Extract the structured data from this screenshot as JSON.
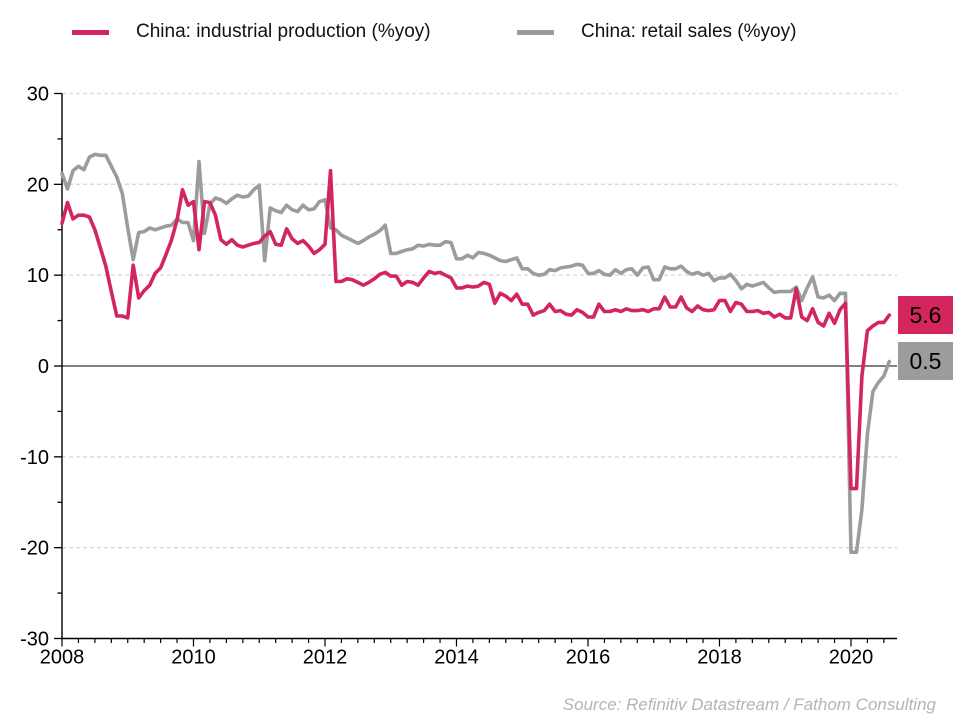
{
  "source": "Source: Refinitiv Datastream / Fathom Consulting",
  "chart_data": {
    "type": "line",
    "title": "",
    "xlabel": "",
    "ylabel": "",
    "x_start_year": 2008,
    "points_per_year": 12,
    "x_tick_labels": [
      "2008",
      "2010",
      "2012",
      "2014",
      "2016",
      "2018",
      "2020"
    ],
    "x_tick_years": [
      2008,
      2010,
      2012,
      2014,
      2016,
      2018,
      2020
    ],
    "y_ticks": [
      30,
      20,
      10,
      0,
      -10,
      -20,
      -30
    ],
    "ylim": [
      -30,
      30
    ],
    "xlim": [
      2008,
      2020.7
    ],
    "grid": "horizontal dashed gridlines at multiples of 10, solid black zero line",
    "legend_position": "top",
    "gridline_color": "#d9d9d9",
    "axis_color": "#000000",
    "series": [
      {
        "name": "China: industrial production (%yoy)",
        "color": "#d2265c",
        "values": [
          15.7,
          18.0,
          16.2,
          16.6,
          16.6,
          16.4,
          15.0,
          13.0,
          11.0,
          8.2,
          5.5,
          5.5,
          5.3,
          11.1,
          7.5,
          8.3,
          8.9,
          10.2,
          10.8,
          12.3,
          13.9,
          16.1,
          19.4,
          17.7,
          18.1,
          12.8,
          18.1,
          18.0,
          16.6,
          13.9,
          13.4,
          13.9,
          13.3,
          13.1,
          13.3,
          13.5,
          13.6,
          14.3,
          14.8,
          13.4,
          13.3,
          15.1,
          14.0,
          13.5,
          13.8,
          13.2,
          12.4,
          12.8,
          13.4,
          21.5,
          9.3,
          9.3,
          9.6,
          9.5,
          9.2,
          8.9,
          9.2,
          9.6,
          10.1,
          10.3,
          9.9,
          9.9,
          8.9,
          9.3,
          9.2,
          8.9,
          9.7,
          10.4,
          10.2,
          10.3,
          10.0,
          9.7,
          8.6,
          8.6,
          8.8,
          8.7,
          8.8,
          9.2,
          9.0,
          6.9,
          8.0,
          7.7,
          7.2,
          7.9,
          6.8,
          6.8,
          5.6,
          5.9,
          6.1,
          6.8,
          6.0,
          6.1,
          5.7,
          5.6,
          6.2,
          5.9,
          5.4,
          5.4,
          6.8,
          6.0,
          6.0,
          6.2,
          6.0,
          6.3,
          6.1,
          6.1,
          6.2,
          6.0,
          6.3,
          6.3,
          7.6,
          6.5,
          6.5,
          7.6,
          6.4,
          6.0,
          6.6,
          6.2,
          6.1,
          6.2,
          7.2,
          7.2,
          6.0,
          7.0,
          6.8,
          6.0,
          6.0,
          6.1,
          5.8,
          5.9,
          5.4,
          5.7,
          5.3,
          5.3,
          8.5,
          5.4,
          5.0,
          6.3,
          4.8,
          4.4,
          5.8,
          4.7,
          6.2,
          6.9,
          -13.5,
          -13.5,
          -1.1,
          3.9,
          4.4,
          4.8,
          4.8,
          5.6
        ]
      },
      {
        "name": "China: retail sales (%yoy)",
        "color": "#9c9c9c",
        "values": [
          21.2,
          19.5,
          21.5,
          22.0,
          21.6,
          23.0,
          23.3,
          23.2,
          23.2,
          22.0,
          20.8,
          19.0,
          15.2,
          11.7,
          14.7,
          14.8,
          15.2,
          15.0,
          15.2,
          15.4,
          15.5,
          16.2,
          15.8,
          15.8,
          13.8,
          22.5,
          14.6,
          17.8,
          18.5,
          18.3,
          17.9,
          18.4,
          18.8,
          18.6,
          18.7,
          19.4,
          19.9,
          11.6,
          17.4,
          17.1,
          16.9,
          17.7,
          17.2,
          17.0,
          17.7,
          17.2,
          17.3,
          18.1,
          18.3,
          15.2,
          15.0,
          14.4,
          14.1,
          13.8,
          13.5,
          13.8,
          14.2,
          14.5,
          14.9,
          15.5,
          12.4,
          12.4,
          12.6,
          12.8,
          12.9,
          13.3,
          13.2,
          13.4,
          13.3,
          13.3,
          13.7,
          13.6,
          11.8,
          11.8,
          12.2,
          11.9,
          12.5,
          12.4,
          12.2,
          11.9,
          11.6,
          11.5,
          11.7,
          11.9,
          10.7,
          10.7,
          10.2,
          10.0,
          10.1,
          10.6,
          10.5,
          10.8,
          10.9,
          11.0,
          11.2,
          11.1,
          10.2,
          10.2,
          10.5,
          10.1,
          10.0,
          10.6,
          10.2,
          10.6,
          10.7,
          10.0,
          10.8,
          10.9,
          9.5,
          9.5,
          10.9,
          10.7,
          10.7,
          11.0,
          10.4,
          10.1,
          10.3,
          10.0,
          10.2,
          9.4,
          9.7,
          9.7,
          10.1,
          9.4,
          8.5,
          9.0,
          8.8,
          9.0,
          9.2,
          8.6,
          8.1,
          8.2,
          8.2,
          8.2,
          8.7,
          7.2,
          8.6,
          9.8,
          7.6,
          7.5,
          7.8,
          7.2,
          8.0,
          8.0,
          -20.5,
          -20.5,
          -15.8,
          -7.5,
          -2.8,
          -1.8,
          -1.1,
          0.5
        ]
      }
    ],
    "end_labels": [
      {
        "series": "China: industrial production (%yoy)",
        "value": "5.6",
        "bg": "#d2265c",
        "text_color": "#000000"
      },
      {
        "series": "China: retail sales (%yoy)",
        "value": "0.5",
        "bg": "#9c9c9c",
        "text_color": "#000000"
      }
    ]
  }
}
